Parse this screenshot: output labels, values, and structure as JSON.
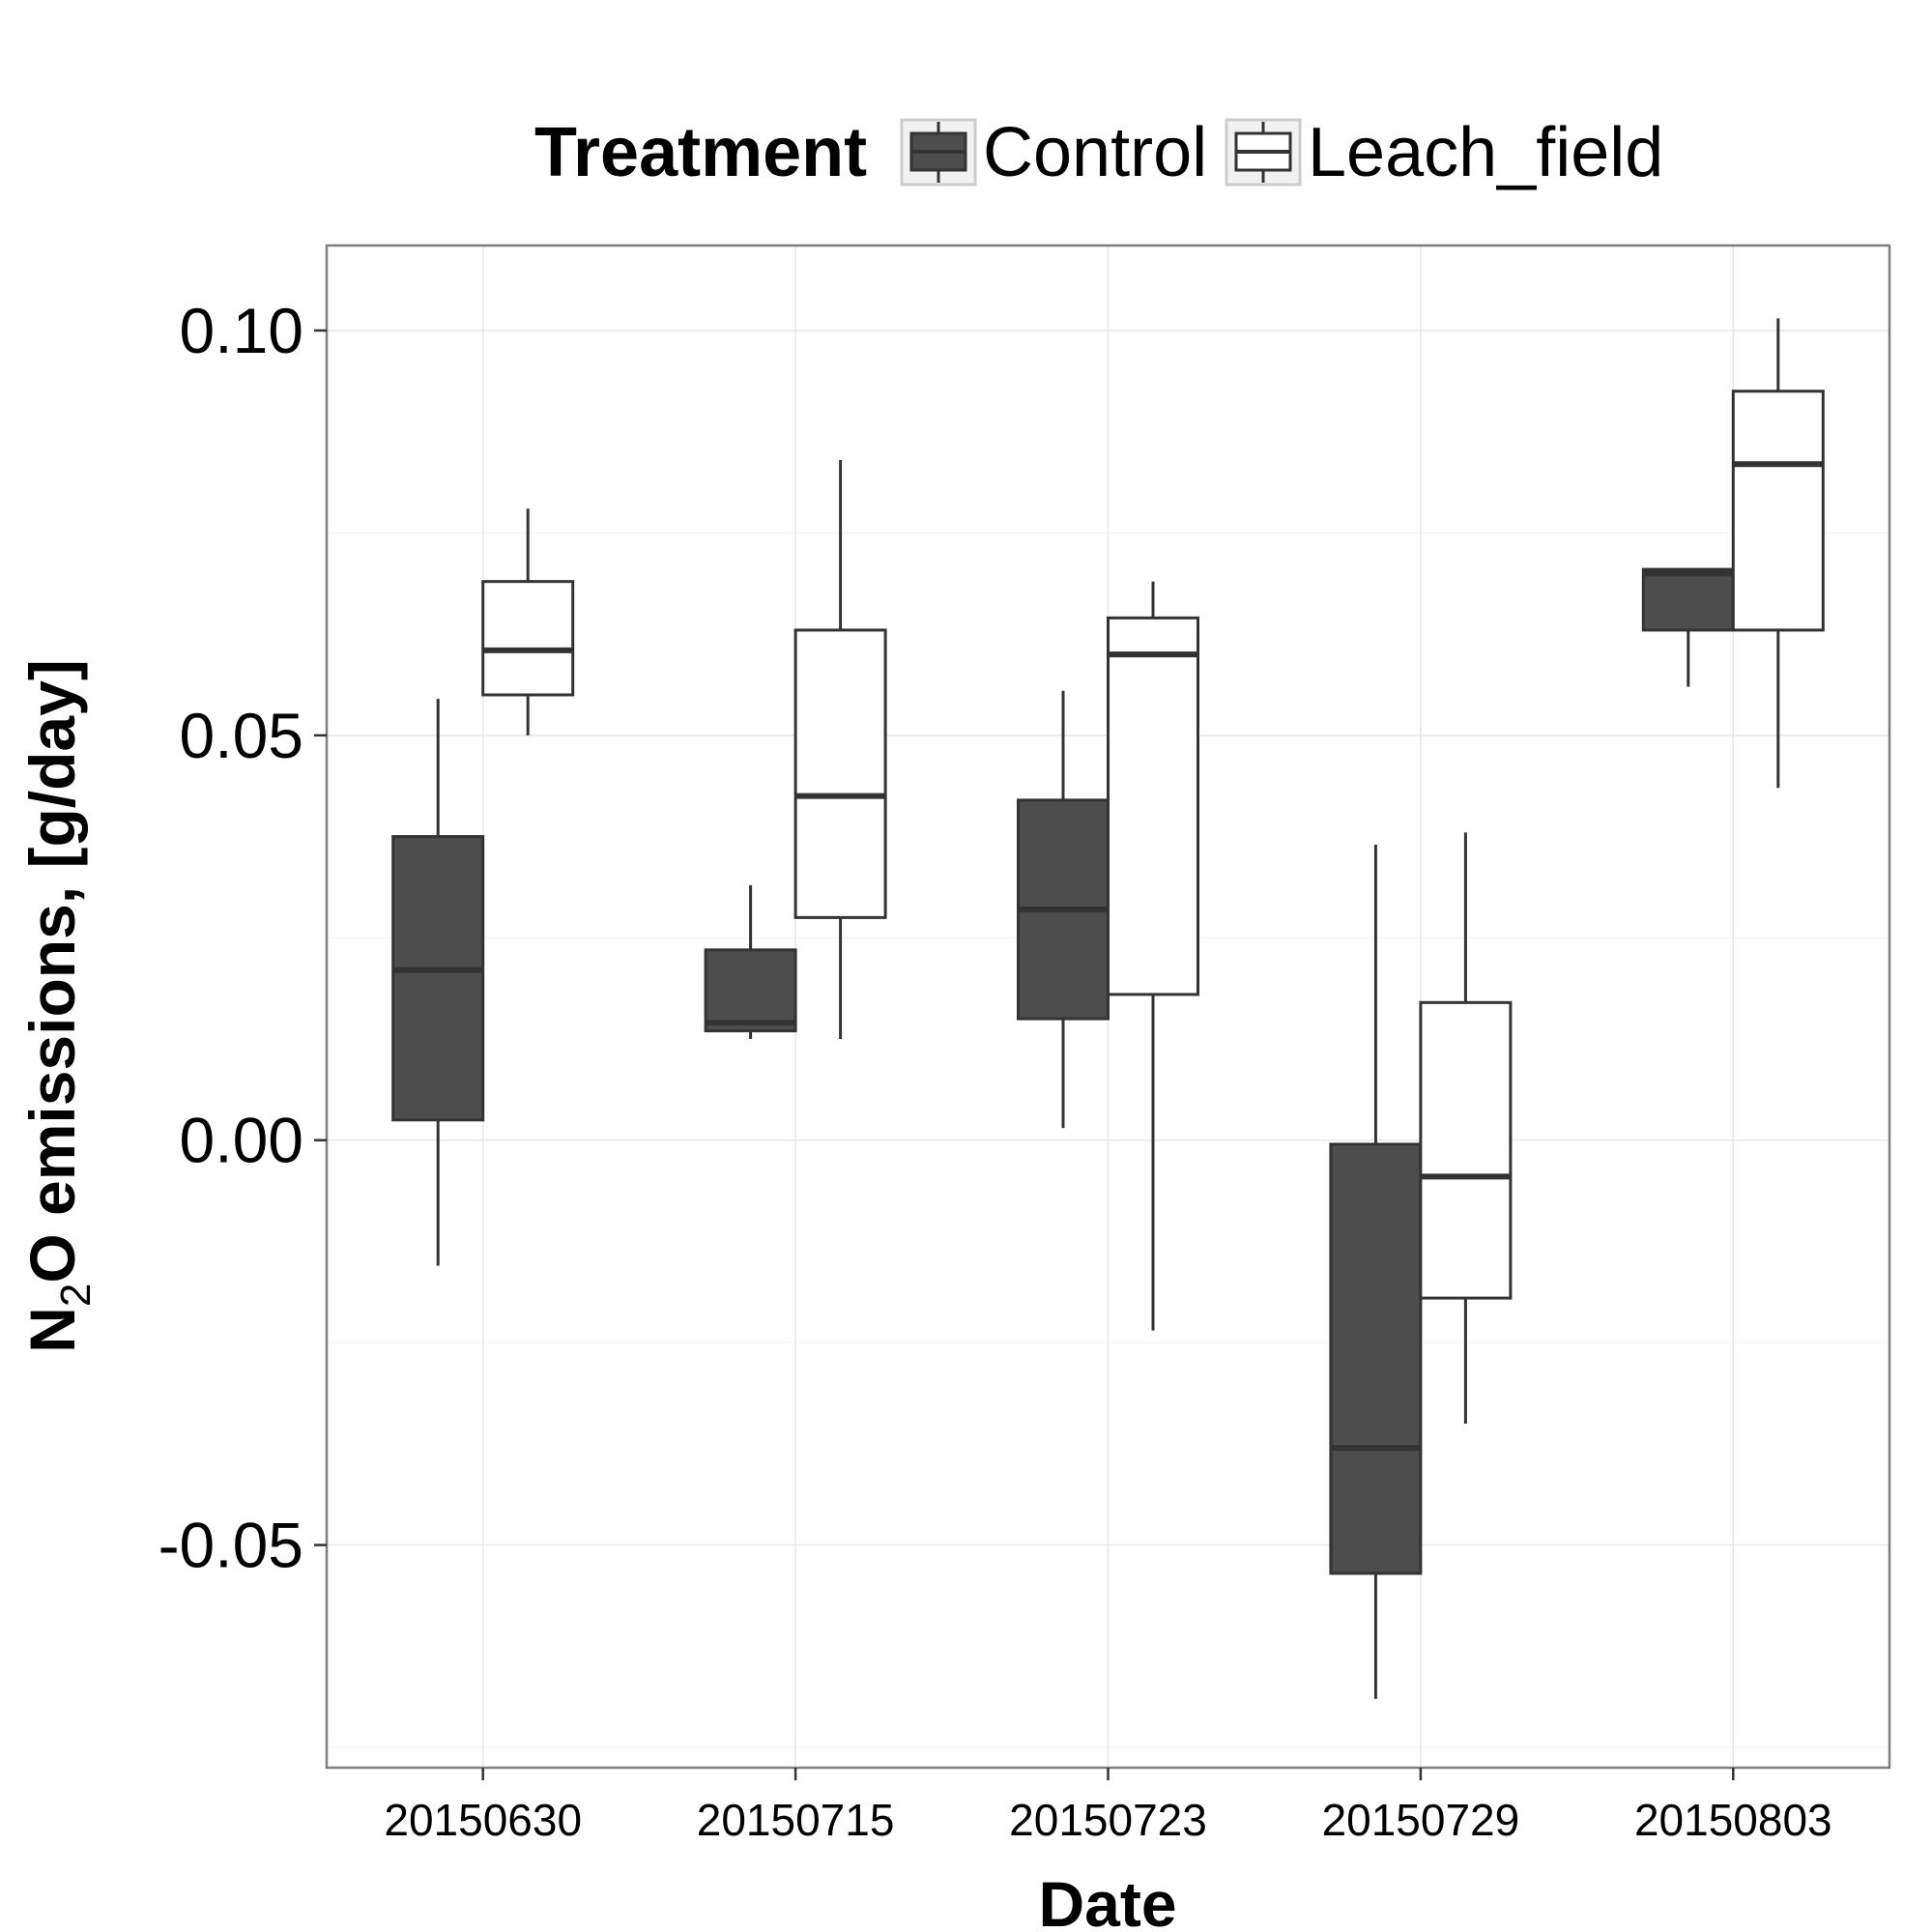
{
  "chart_data": {
    "type": "boxplot",
    "xlabel": "Date",
    "ylabel_parts": [
      "N",
      "2",
      "O emissions, [g/day]"
    ],
    "legend": {
      "title": "Treatment",
      "placement": "top",
      "entries": [
        "Control",
        "Leach_field"
      ]
    },
    "categories": [
      "20150630",
      "20150715",
      "20150723",
      "20150729",
      "20150803"
    ],
    "ylim": [
      -0.0775,
      0.1105
    ],
    "yticks": [
      -0.05,
      0.0,
      0.05,
      0.1
    ],
    "ytick_labels": [
      "-0.05",
      "0.00",
      "0.05",
      "0.10"
    ],
    "grid": true,
    "series": [
      {
        "name": "Control",
        "fill": "#4d4d4d",
        "boxes": [
          {
            "min": -0.0155,
            "q1": 0.0025,
            "median": 0.021,
            "q3": 0.0375,
            "max": 0.0545
          },
          {
            "min": 0.0125,
            "q1": 0.0135,
            "median": 0.0145,
            "q3": 0.0235,
            "max": 0.0315
          },
          {
            "min": 0.0015,
            "q1": 0.015,
            "median": 0.0285,
            "q3": 0.042,
            "max": 0.0555
          },
          {
            "min": -0.069,
            "q1": -0.0535,
            "median": -0.038,
            "q3": -0.0005,
            "max": 0.0365
          },
          {
            "min": 0.056,
            "q1": 0.063,
            "median": 0.07,
            "q3": 0.0705,
            "max": 0.0705
          }
        ]
      },
      {
        "name": "Leach_field",
        "fill": "#ffffff",
        "boxes": [
          {
            "min": 0.05,
            "q1": 0.055,
            "median": 0.0605,
            "q3": 0.069,
            "max": 0.078
          },
          {
            "min": 0.0125,
            "q1": 0.0275,
            "median": 0.0425,
            "q3": 0.063,
            "max": 0.084
          },
          {
            "min": -0.0235,
            "q1": 0.018,
            "median": 0.06,
            "q3": 0.0645,
            "max": 0.069
          },
          {
            "min": -0.035,
            "q1": -0.0195,
            "median": -0.0045,
            "q3": 0.017,
            "max": 0.038
          },
          {
            "min": 0.0435,
            "q1": 0.063,
            "median": 0.0835,
            "q3": 0.0925,
            "max": 0.1015
          }
        ]
      }
    ]
  }
}
